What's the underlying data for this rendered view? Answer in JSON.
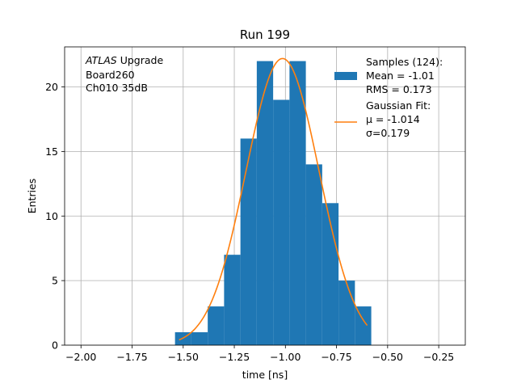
{
  "chart_data": {
    "type": "bar",
    "title": "Run 199",
    "xlabel": "time [ns]",
    "ylabel": "Entries",
    "xlim": [
      -2.08,
      -0.12
    ],
    "ylim": [
      0,
      23.1
    ],
    "grid": true,
    "legend_position": "top-right",
    "x_ticks": [
      -2.0,
      -1.75,
      -1.5,
      -1.25,
      -1.0,
      -0.75,
      -0.5,
      -0.25
    ],
    "x_tick_labels": [
      "−2.00",
      "−1.75",
      "−1.50",
      "−1.25",
      "−1.00",
      "−0.75",
      "−0.50",
      "−0.25"
    ],
    "y_ticks": [
      0,
      5,
      10,
      15,
      20
    ],
    "y_tick_labels": [
      "0",
      "5",
      "10",
      "15",
      "20"
    ],
    "histogram": {
      "bin_edges": [
        -1.54,
        -1.46,
        -1.38,
        -1.3,
        -1.22,
        -1.14,
        -1.06,
        -0.98,
        -0.9,
        -0.82,
        -0.74,
        -0.66,
        -0.58
      ],
      "counts": [
        1,
        1,
        3,
        7,
        16,
        22,
        19,
        22,
        14,
        11,
        5,
        3
      ],
      "color": "#1f77b4"
    },
    "fit": {
      "mu": -1.014,
      "sigma": 0.179,
      "amplitude": 22.2,
      "x_range": [
        -1.52,
        -0.6
      ],
      "color": "#ff7f0e"
    },
    "legend": [
      {
        "kind": "patch",
        "color": "#1f77b4",
        "lines": [
          "Samples (124):",
          " Mean = -1.01",
          " RMS = 0.173"
        ]
      },
      {
        "kind": "line",
        "color": "#ff7f0e",
        "lines": [
          "Gaussian Fit:",
          " μ = -1.014",
          " σ=0.179"
        ]
      }
    ],
    "annotation": {
      "italic": "ATLAS",
      "rest": " Upgrade",
      "lines": [
        " Board260",
        " Ch010 35dB"
      ]
    }
  }
}
